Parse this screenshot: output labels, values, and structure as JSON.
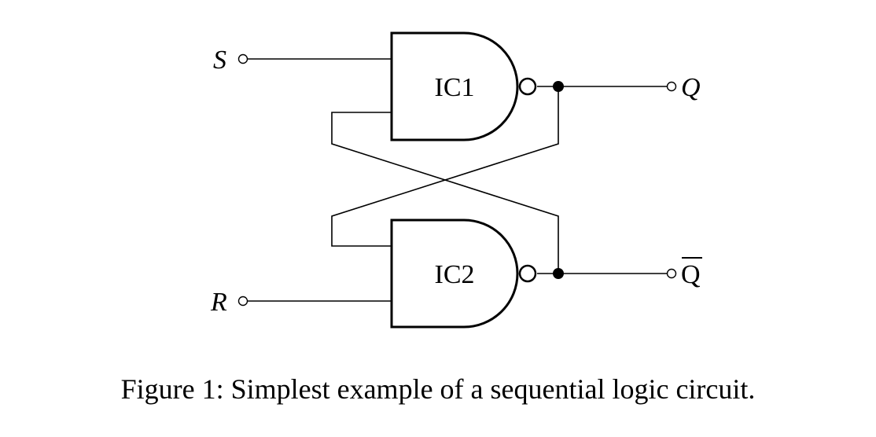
{
  "diagram": {
    "inputs": {
      "s_label": "S",
      "r_label": "R"
    },
    "outputs": {
      "q_label": "Q",
      "qbar_label": "Q"
    },
    "gates": [
      {
        "label": "IC1"
      },
      {
        "label": "IC2"
      }
    ]
  },
  "caption": {
    "text": "Figure 1: Simplest example of a sequential logic circuit."
  }
}
